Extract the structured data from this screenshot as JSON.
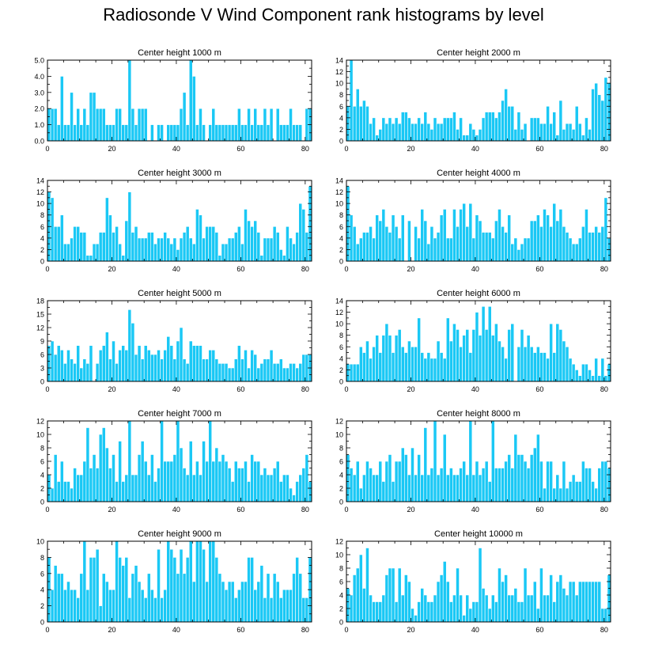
{
  "title": "Radiosonde V Wind Component rank histograms by level",
  "style": {
    "bar_color": "#1ac8f5",
    "bar_edge": "#ffffff",
    "axis_color": "#000000"
  },
  "chart_data": [
    {
      "type": "bar",
      "title": "Center height 1000 m",
      "ylim": [
        0,
        5
      ],
      "yticks": [
        0,
        1,
        2,
        3,
        4,
        5
      ],
      "ytick_labels": [
        "0.0",
        "1.0",
        "2.0",
        "3.0",
        "4.0",
        "5.0"
      ],
      "xlim": [
        0,
        82
      ],
      "xticks": [
        0,
        20,
        40,
        60,
        80
      ],
      "x_start": 0,
      "values": [
        2,
        2,
        2,
        1,
        4,
        1,
        1,
        3,
        1,
        2,
        1,
        2,
        1,
        3,
        3,
        2,
        2,
        2,
        1,
        1,
        1,
        2,
        2,
        1,
        1,
        5,
        2,
        1,
        2,
        2,
        2,
        0,
        1,
        0,
        1,
        1,
        0,
        1,
        1,
        1,
        1,
        2,
        3,
        1,
        5,
        4,
        1,
        2,
        1,
        0,
        1,
        2,
        1,
        1,
        1,
        1,
        1,
        1,
        1,
        2,
        1,
        1,
        2,
        1,
        2,
        1,
        1,
        2,
        1,
        2,
        0,
        2,
        1,
        1,
        1,
        2,
        1,
        1,
        1,
        0,
        2,
        2
      ]
    },
    {
      "type": "bar",
      "title": "Center height 2000 m",
      "ylim": [
        0,
        14
      ],
      "yticks": [
        0,
        2,
        4,
        6,
        8,
        10,
        12,
        14
      ],
      "ytick_labels": [
        "0",
        "2",
        "4",
        "6",
        "8",
        "10",
        "12",
        "14"
      ],
      "xlim": [
        0,
        82
      ],
      "xticks": [
        0,
        20,
        40,
        60,
        80
      ],
      "x_start": 0,
      "values": [
        6,
        14,
        6,
        9,
        6,
        7,
        6,
        3,
        4,
        1,
        2,
        4,
        3,
        4,
        3,
        4,
        3,
        5,
        5,
        4,
        3,
        3,
        4,
        3,
        5,
        3,
        2,
        4,
        3,
        3,
        4,
        4,
        4,
        5,
        2,
        4,
        1,
        1,
        3,
        2,
        1,
        2,
        4,
        5,
        5,
        5,
        4,
        5,
        7,
        9,
        6,
        6,
        2,
        5,
        2,
        3,
        0,
        4,
        4,
        4,
        3,
        3,
        6,
        3,
        5,
        1,
        7,
        2,
        3,
        3,
        2,
        6,
        3,
        1,
        4,
        2,
        9,
        10,
        8,
        7,
        11,
        10
      ]
    },
    {
      "type": "bar",
      "title": "Center height 3000 m",
      "ylim": [
        0,
        14
      ],
      "yticks": [
        0,
        2,
        4,
        6,
        8,
        10,
        12,
        14
      ],
      "ytick_labels": [
        "0",
        "2",
        "4",
        "6",
        "8",
        "10",
        "12",
        "14"
      ],
      "xlim": [
        0,
        82
      ],
      "xticks": [
        0,
        20,
        40,
        60,
        80
      ],
      "x_start": 0,
      "values": [
        12,
        11,
        6,
        6,
        8,
        3,
        3,
        4,
        6,
        6,
        5,
        5,
        1,
        1,
        3,
        3,
        5,
        5,
        11,
        8,
        5,
        6,
        3,
        1,
        7,
        12,
        5,
        6,
        4,
        4,
        4,
        5,
        5,
        3,
        4,
        4,
        5,
        4,
        3,
        4,
        2,
        4,
        5,
        6,
        4,
        3,
        9,
        8,
        4,
        6,
        6,
        6,
        5,
        1,
        3,
        3,
        4,
        4,
        5,
        6,
        3,
        9,
        7,
        6,
        7,
        5,
        1,
        4,
        4,
        4,
        6,
        5,
        2,
        1,
        6,
        4,
        3,
        5,
        10,
        9,
        5,
        13
      ]
    },
    {
      "type": "bar",
      "title": "Center height 4000 m",
      "ylim": [
        0,
        14
      ],
      "yticks": [
        0,
        2,
        4,
        6,
        8,
        10,
        12,
        14
      ],
      "ytick_labels": [
        "0",
        "2",
        "4",
        "6",
        "8",
        "10",
        "12",
        "14"
      ],
      "xlim": [
        0,
        82
      ],
      "xticks": [
        0,
        20,
        40,
        60,
        80
      ],
      "x_start": 0,
      "values": [
        13,
        8,
        6,
        3,
        4,
        5,
        5,
        6,
        4,
        8,
        7,
        9,
        6,
        5,
        8,
        6,
        4,
        8,
        0,
        7,
        0,
        6,
        4,
        9,
        7,
        3,
        6,
        4,
        5,
        8,
        9,
        4,
        4,
        9,
        6,
        9,
        10,
        6,
        10,
        4,
        8,
        7,
        5,
        5,
        5,
        4,
        7,
        9,
        6,
        5,
        8,
        3,
        4,
        2,
        3,
        4,
        4,
        7,
        7,
        8,
        6,
        9,
        8,
        6,
        10,
        7,
        9,
        6,
        5,
        4,
        3,
        3,
        4,
        6,
        9,
        5,
        5,
        6,
        5,
        6,
        11,
        4
      ]
    },
    {
      "type": "bar",
      "title": "Center height 5000 m",
      "ylim": [
        0,
        18
      ],
      "yticks": [
        0,
        3,
        6,
        9,
        12,
        15,
        18
      ],
      "ytick_labels": [
        "0",
        "3",
        "6",
        "9",
        "12",
        "15",
        "18"
      ],
      "xlim": [
        0,
        82
      ],
      "xticks": [
        0,
        20,
        40,
        60,
        80
      ],
      "x_start": 0,
      "values": [
        8,
        9,
        6,
        8,
        7,
        4,
        7,
        5,
        4,
        8,
        3,
        5,
        4,
        8,
        0,
        4,
        7,
        8,
        11,
        5,
        9,
        4,
        7,
        8,
        7,
        16,
        13,
        6,
        8,
        5,
        8,
        7,
        6,
        6,
        7,
        5,
        7,
        10,
        8,
        5,
        9,
        12,
        5,
        4,
        9,
        8,
        8,
        8,
        5,
        5,
        7,
        7,
        5,
        4,
        4,
        4,
        3,
        3,
        5,
        8,
        5,
        7,
        3,
        7,
        6,
        3,
        4,
        5,
        5,
        7,
        4,
        4,
        5,
        3,
        3,
        4,
        4,
        3,
        4,
        6,
        6,
        6
      ]
    },
    {
      "type": "bar",
      "title": "Center height 6000 m",
      "ylim": [
        0,
        14
      ],
      "yticks": [
        0,
        2,
        4,
        6,
        8,
        10,
        12,
        14
      ],
      "ytick_labels": [
        "0",
        "2",
        "4",
        "6",
        "8",
        "10",
        "12",
        "14"
      ],
      "xlim": [
        0,
        82
      ],
      "xticks": [
        0,
        20,
        40,
        60,
        80
      ],
      "x_start": 0,
      "values": [
        3,
        3,
        3,
        3,
        6,
        5,
        7,
        4,
        6,
        8,
        5,
        8,
        10,
        8,
        5,
        8,
        9,
        6,
        5,
        7,
        6,
        6,
        11,
        5,
        4,
        5,
        4,
        4,
        7,
        5,
        4,
        11,
        7,
        10,
        9,
        6,
        8,
        9,
        5,
        9,
        12,
        8,
        13,
        9,
        13,
        8,
        10,
        7,
        6,
        4,
        9,
        10,
        0,
        6,
        9,
        6,
        8,
        6,
        5,
        6,
        5,
        5,
        4,
        10,
        5,
        10,
        9,
        7,
        6,
        4,
        3,
        2,
        1,
        3,
        3,
        2,
        1,
        4,
        1,
        4,
        1,
        3
      ]
    },
    {
      "type": "bar",
      "title": "Center height 7000 m",
      "ylim": [
        0,
        12
      ],
      "yticks": [
        0,
        2,
        4,
        6,
        8,
        10,
        12
      ],
      "ytick_labels": [
        "0",
        "2",
        "4",
        "6",
        "8",
        "10",
        "12"
      ],
      "xlim": [
        0,
        82
      ],
      "xticks": [
        0,
        20,
        40,
        60,
        80
      ],
      "x_start": 0,
      "values": [
        4,
        2,
        7,
        3,
        6,
        3,
        3,
        2,
        5,
        4,
        4,
        6,
        11,
        5,
        7,
        5,
        10,
        11,
        8,
        5,
        7,
        3,
        9,
        3,
        4,
        12,
        4,
        4,
        7,
        9,
        6,
        4,
        7,
        3,
        5,
        12,
        6,
        6,
        6,
        7,
        12,
        8,
        5,
        4,
        9,
        4,
        6,
        4,
        9,
        6,
        12,
        6,
        8,
        6,
        7,
        6,
        5,
        3,
        6,
        5,
        5,
        6,
        3,
        7,
        6,
        6,
        4,
        5,
        4,
        4,
        5,
        6,
        3,
        4,
        4,
        2,
        1,
        3,
        4,
        5,
        7,
        3
      ]
    },
    {
      "type": "bar",
      "title": "Center height 8000 m",
      "ylim": [
        0,
        12
      ],
      "yticks": [
        0,
        2,
        4,
        6,
        8,
        10,
        12
      ],
      "ytick_labels": [
        "0",
        "2",
        "4",
        "6",
        "8",
        "10",
        "12"
      ],
      "xlim": [
        0,
        82
      ],
      "xticks": [
        0,
        20,
        40,
        60,
        80
      ],
      "x_start": 0,
      "values": [
        7,
        5,
        4,
        6,
        2,
        4,
        6,
        5,
        4,
        4,
        6,
        3,
        6,
        7,
        3,
        6,
        6,
        8,
        7,
        4,
        8,
        4,
        7,
        4,
        11,
        4,
        5,
        12,
        4,
        5,
        10,
        4,
        5,
        4,
        4,
        5,
        6,
        4,
        12,
        4,
        6,
        4,
        5,
        6,
        3,
        12,
        5,
        5,
        5,
        6,
        7,
        5,
        10,
        7,
        7,
        6,
        5,
        7,
        8,
        10,
        6,
        2,
        6,
        6,
        2,
        4,
        2,
        6,
        2,
        3,
        4,
        3,
        3,
        6,
        5,
        5,
        3,
        2,
        5,
        6,
        6,
        5
      ]
    },
    {
      "type": "bar",
      "title": "Center height 9000 m",
      "ylim": [
        0,
        10
      ],
      "yticks": [
        0,
        2,
        4,
        6,
        8,
        10
      ],
      "ytick_labels": [
        "0",
        "2",
        "4",
        "6",
        "8",
        "10"
      ],
      "xlim": [
        0,
        82
      ],
      "xticks": [
        0,
        20,
        40,
        60,
        80
      ],
      "x_start": 0,
      "values": [
        8,
        4,
        7,
        6,
        6,
        4,
        5,
        4,
        4,
        3,
        6,
        10,
        4,
        8,
        8,
        9,
        2,
        6,
        5,
        4,
        4,
        10,
        8,
        7,
        8,
        3,
        6,
        7,
        5,
        4,
        3,
        6,
        4,
        3,
        9,
        3,
        4,
        10,
        9,
        8,
        6,
        9,
        6,
        8,
        10,
        5,
        10,
        10,
        9,
        5,
        10,
        10,
        8,
        6,
        5,
        4,
        5,
        5,
        3,
        4,
        5,
        5,
        8,
        8,
        4,
        5,
        7,
        3,
        6,
        3,
        6,
        5,
        3,
        4,
        4,
        4,
        6,
        8,
        6,
        3,
        3,
        8
      ]
    },
    {
      "type": "bar",
      "title": "Center height 10000 m",
      "ylim": [
        0,
        12
      ],
      "yticks": [
        0,
        2,
        4,
        6,
        8,
        10,
        12
      ],
      "ytick_labels": [
        "0",
        "2",
        "4",
        "6",
        "8",
        "10",
        "12"
      ],
      "xlim": [
        0,
        82
      ],
      "xticks": [
        0,
        20,
        40,
        60,
        80
      ],
      "x_start": 0,
      "values": [
        5,
        4,
        7,
        8,
        10,
        5,
        11,
        4,
        3,
        3,
        3,
        4,
        7,
        8,
        8,
        3,
        8,
        4,
        7,
        6,
        2,
        1,
        3,
        5,
        4,
        3,
        3,
        4,
        6,
        7,
        9,
        6,
        3,
        4,
        8,
        4,
        1,
        4,
        2,
        3,
        3,
        11,
        5,
        4,
        2,
        4,
        3,
        8,
        6,
        7,
        4,
        4,
        5,
        3,
        3,
        8,
        4,
        4,
        6,
        2,
        8,
        4,
        4,
        7,
        3,
        6,
        7,
        5,
        4,
        6,
        6,
        4,
        6,
        6,
        6,
        6,
        6,
        6,
        6,
        2,
        2,
        7
      ]
    }
  ]
}
